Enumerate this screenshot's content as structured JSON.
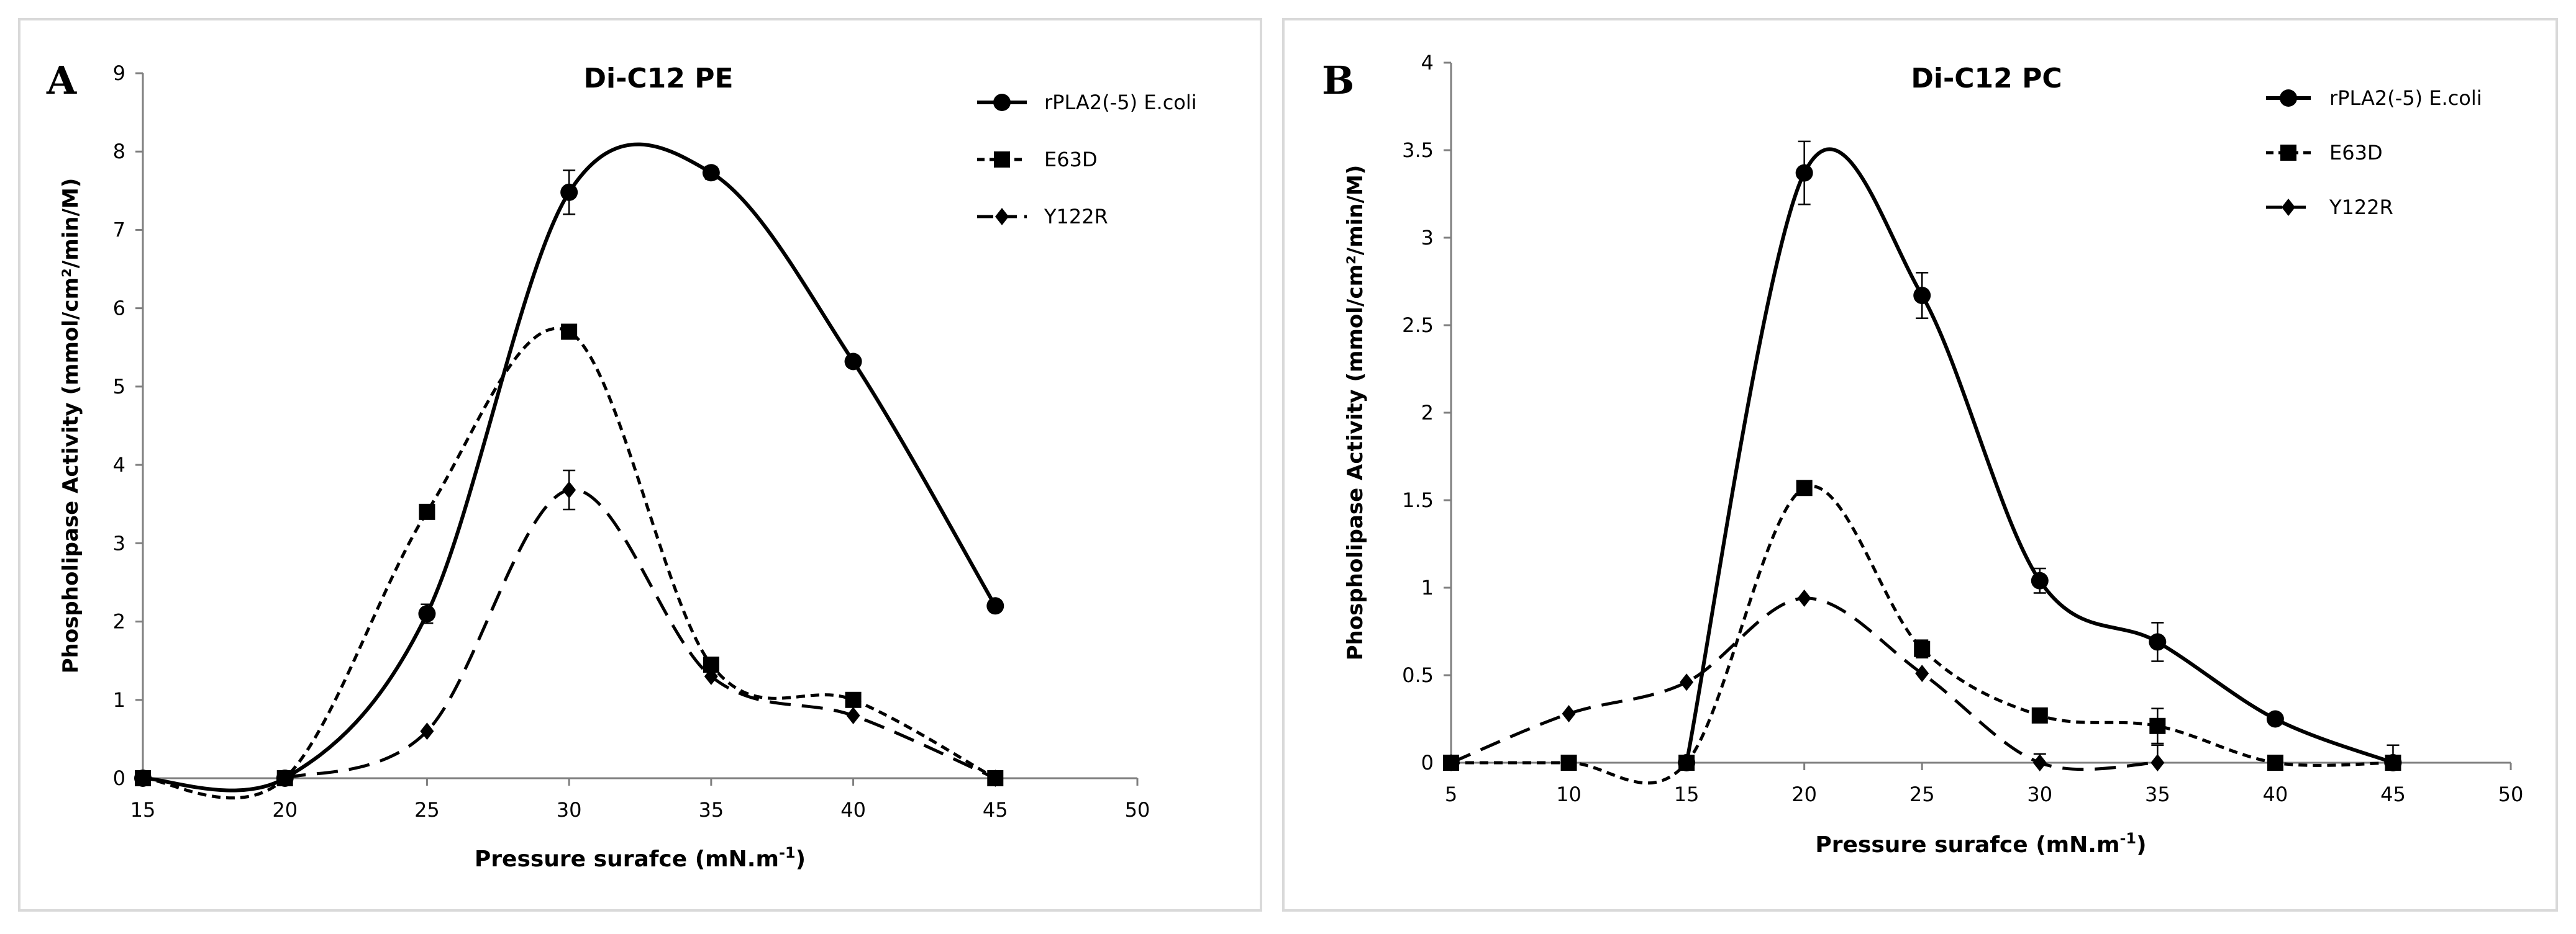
{
  "chart_data": [
    {
      "panel_label": "A",
      "type": "line",
      "title": "Di-C12 PE",
      "xlabel": "Pressure surafce (mN.m",
      "xlabel_sup": "-1",
      "xlabel_close": ")",
      "ylabel": "Phospholipase  Activity  (mmol/cm²/min/M)",
      "xlim": [
        15,
        50
      ],
      "ylim": [
        0,
        9
      ],
      "xticks": [
        15,
        20,
        25,
        30,
        35,
        40,
        45,
        50
      ],
      "yticks": [
        0,
        1,
        2,
        3,
        4,
        5,
        6,
        7,
        8,
        9
      ],
      "legend_position": "top-right",
      "series": [
        {
          "name": "rPLA2(-5) E.coli",
          "marker": "circle",
          "line": "solid",
          "points": [
            [
              15,
              0
            ],
            [
              20,
              0
            ],
            [
              25,
              2.1
            ],
            [
              30,
              7.48
            ],
            [
              35,
              7.73
            ],
            [
              40,
              5.32
            ],
            [
              45,
              2.2
            ]
          ],
          "errors": [
            0,
            0,
            0.12,
            0.28,
            0.08,
            0,
            0
          ]
        },
        {
          "name": "E63D",
          "marker": "square",
          "line": "dotted",
          "points": [
            [
              15,
              0
            ],
            [
              20,
              0
            ],
            [
              25,
              3.4
            ],
            [
              30,
              5.7
            ],
            [
              35,
              1.45
            ],
            [
              40,
              1.0
            ],
            [
              45,
              0
            ]
          ],
          "errors": [
            0,
            0,
            0,
            0,
            0,
            0,
            0
          ]
        },
        {
          "name": "Y122R",
          "marker": "diamond",
          "line": "dashed",
          "points": [
            [
              20,
              0
            ],
            [
              25,
              0.6
            ],
            [
              30,
              3.68
            ],
            [
              35,
              1.3
            ],
            [
              40,
              0.8
            ],
            [
              45,
              0
            ]
          ],
          "errors": [
            0,
            0,
            0.25,
            0,
            0,
            0
          ]
        }
      ]
    },
    {
      "panel_label": "B",
      "type": "line",
      "title": "Di-C12 PC",
      "xlabel": "Pressure surafce (mN.m",
      "xlabel_sup": "-1",
      "xlabel_close": ")",
      "ylabel": "Phospholipase  Activity  (mmol/cm²/min/M)",
      "xlim": [
        5,
        50
      ],
      "ylim": [
        0,
        4
      ],
      "xticks": [
        5,
        10,
        15,
        20,
        25,
        30,
        35,
        40,
        45,
        50
      ],
      "yticks": [
        0,
        0.5,
        1,
        1.5,
        2,
        2.5,
        3,
        3.5,
        4
      ],
      "legend_position": "top-right",
      "series": [
        {
          "name": "rPLA2(-5) E.coli",
          "marker": "circle",
          "line": "solid",
          "points": [
            [
              15,
              0
            ],
            [
              20,
              3.37
            ],
            [
              25,
              2.67
            ],
            [
              30,
              1.04
            ],
            [
              35,
              0.69
            ],
            [
              40,
              0.25
            ],
            [
              45,
              0
            ]
          ],
          "errors": [
            0,
            0.18,
            0.13,
            0.07,
            0.11,
            0,
            0
          ]
        },
        {
          "name": "E63D",
          "marker": "square",
          "line": "dotted",
          "points": [
            [
              5,
              0
            ],
            [
              10,
              0
            ],
            [
              15,
              0
            ],
            [
              20,
              1.57
            ],
            [
              25,
              0.65
            ],
            [
              30,
              0.27
            ],
            [
              35,
              0.21
            ],
            [
              40,
              0
            ],
            [
              45,
              0
            ]
          ],
          "errors": [
            0,
            0,
            0,
            0,
            0.05,
            0,
            0.1,
            0,
            0.1
          ]
        },
        {
          "name": "Y122R",
          "marker": "diamond",
          "line": "dashed",
          "points": [
            [
              5,
              0
            ],
            [
              10,
              0.28
            ],
            [
              15,
              0.46
            ],
            [
              20,
              0.94
            ],
            [
              25,
              0.51
            ],
            [
              30,
              0
            ],
            [
              35,
              0
            ]
          ],
          "errors": [
            0,
            0,
            0,
            0,
            0,
            0.05,
            0.1
          ]
        }
      ]
    }
  ]
}
